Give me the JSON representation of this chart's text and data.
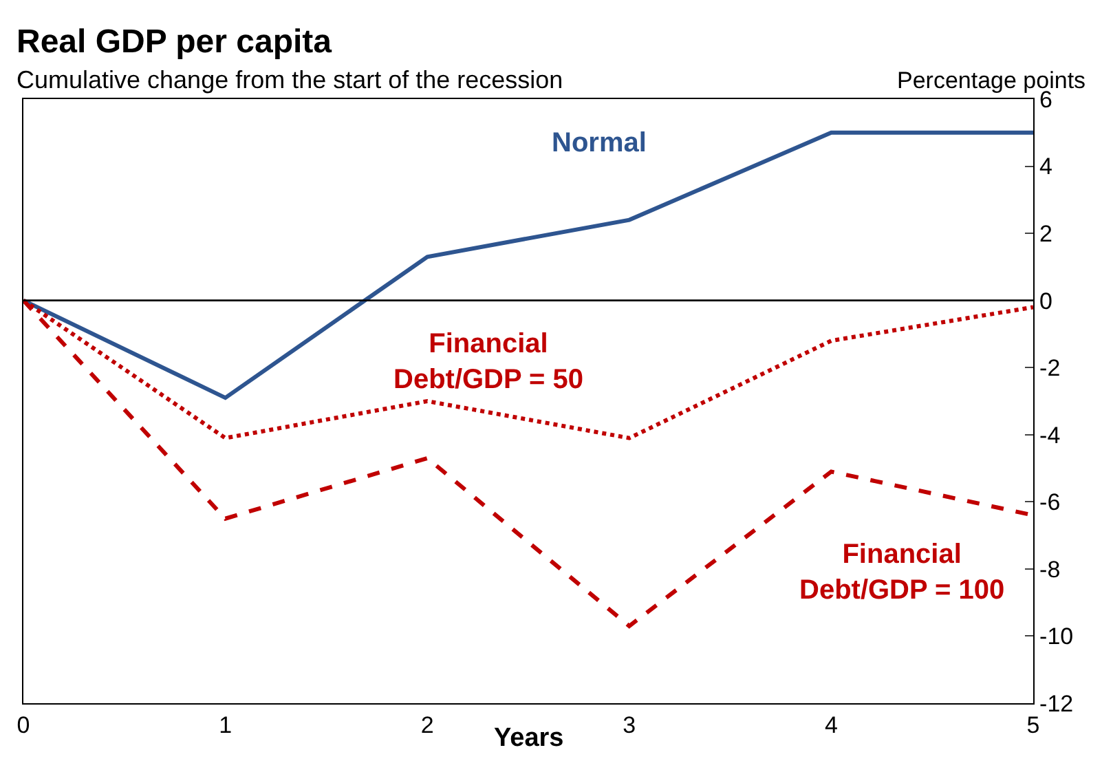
{
  "chart_data": {
    "type": "line",
    "title": "Real GDP per capita",
    "subtitle": "Cumulative change from the start of the recession",
    "ylabel": "Percentage points",
    "xlabel": "Years",
    "x": [
      0,
      1,
      2,
      3,
      4,
      5
    ],
    "series": [
      {
        "name": "Normal",
        "color": "#2e5590",
        "line_style": "solid",
        "values": [
          0,
          -2.9,
          1.3,
          2.4,
          5.0,
          5.0
        ]
      },
      {
        "name": "Financial\nDebt/GDP = 50",
        "color": "#c00000",
        "line_style": "dotted",
        "values": [
          0,
          -4.1,
          -3.0,
          -4.1,
          -1.2,
          -0.2
        ]
      },
      {
        "name": "Financial\nDebt/GDP = 100",
        "color": "#c00000",
        "line_style": "dashed",
        "values": [
          0,
          -6.5,
          -4.7,
          -9.7,
          -5.1,
          -6.4
        ]
      }
    ],
    "xlim": [
      0,
      5
    ],
    "xticks": [
      0,
      1,
      2,
      3,
      4,
      5
    ],
    "ylim": [
      -12,
      6
    ],
    "yticks": [
      -12,
      -10,
      -8,
      -6,
      -4,
      -2,
      0,
      2,
      4,
      6
    ],
    "ref_lines": [
      {
        "axis": "y",
        "value": 0,
        "color": "#000000",
        "line_style": "solid"
      }
    ],
    "grid": false,
    "legend": false,
    "marker": "none"
  }
}
